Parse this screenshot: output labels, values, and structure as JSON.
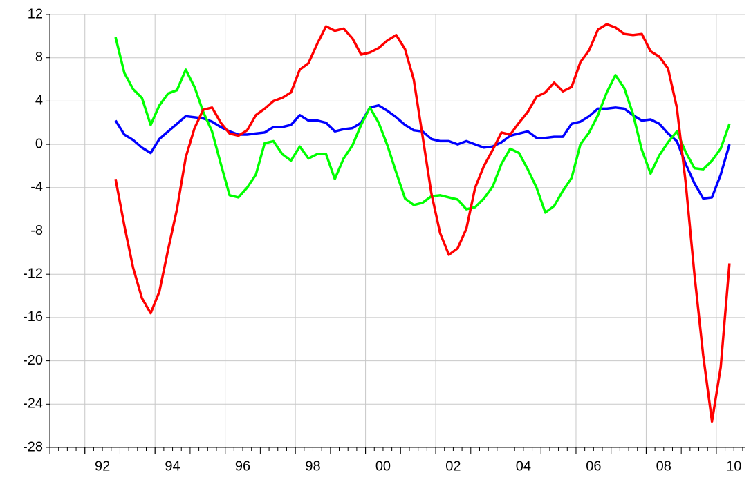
{
  "chart_data": {
    "type": "line",
    "x": [
      1992.875,
      1993.125,
      1993.375,
      1993.625,
      1993.875,
      1994.125,
      1994.375,
      1994.625,
      1994.875,
      1995.125,
      1995.375,
      1995.625,
      1995.875,
      1996.125,
      1996.375,
      1996.625,
      1996.875,
      1997.125,
      1997.375,
      1997.625,
      1997.875,
      1998.125,
      1998.375,
      1998.625,
      1998.875,
      1999.125,
      1999.375,
      1999.625,
      1999.875,
      2000.125,
      2000.375,
      2000.625,
      2000.875,
      2001.125,
      2001.375,
      2001.625,
      2001.875,
      2002.125,
      2002.375,
      2002.625,
      2002.875,
      2003.125,
      2003.375,
      2003.625,
      2003.875,
      2004.125,
      2004.375,
      2004.625,
      2004.875,
      2005.125,
      2005.375,
      2005.625,
      2005.875,
      2006.125,
      2006.375,
      2006.625,
      2006.875,
      2007.125,
      2007.375,
      2007.625,
      2007.875,
      2008.125,
      2008.375,
      2008.625,
      2008.875,
      2009.125,
      2009.375,
      2009.625,
      2009.875,
      2010.125,
      2010.375
    ],
    "series": [
      {
        "color": "#0000ff",
        "values": [
          2.2,
          0.9,
          0.4,
          -0.3,
          -0.8,
          0.5,
          1.2,
          1.9,
          2.6,
          2.5,
          2.4,
          2.1,
          1.6,
          1.2,
          0.9,
          0.9,
          1.0,
          1.1,
          1.6,
          1.6,
          1.8,
          2.7,
          2.2,
          2.2,
          2.0,
          1.2,
          1.4,
          1.5,
          2.0,
          3.4,
          3.6,
          3.1,
          2.5,
          1.8,
          1.3,
          1.2,
          0.5,
          0.3,
          0.3,
          0.0,
          0.3,
          0.0,
          -0.3,
          -0.2,
          0.2,
          0.8,
          1.0,
          1.2,
          0.6,
          0.6,
          0.7,
          0.7,
          1.9,
          2.1,
          2.6,
          3.3,
          3.3,
          3.4,
          3.3,
          2.7,
          2.2,
          2.3,
          1.9,
          1.0,
          0.3,
          -1.8,
          -3.6,
          -5.0,
          -4.9,
          -2.8,
          0.0
        ]
      },
      {
        "color": "#00ff00",
        "values": [
          9.9,
          6.6,
          5.1,
          4.3,
          1.8,
          3.6,
          4.7,
          5.0,
          6.9,
          5.3,
          3.0,
          1.2,
          -1.8,
          -4.7,
          -4.9,
          -4.0,
          -2.8,
          0.1,
          0.3,
          -0.9,
          -1.5,
          -0.2,
          -1.3,
          -0.9,
          -0.9,
          -3.2,
          -1.3,
          -0.1,
          1.8,
          3.4,
          2.0,
          -0.1,
          -2.6,
          -5.0,
          -5.6,
          -5.4,
          -4.8,
          -4.7,
          -4.9,
          -5.1,
          -6.0,
          -5.8,
          -5.0,
          -3.9,
          -1.8,
          -0.4,
          -0.8,
          -2.3,
          -4.0,
          -6.3,
          -5.7,
          -4.3,
          -3.1,
          0.0,
          1.1,
          2.7,
          4.8,
          6.4,
          5.2,
          2.8,
          -0.5,
          -2.7,
          -1.0,
          0.2,
          1.2,
          -0.7,
          -2.2,
          -2.3,
          -1.5,
          -0.4,
          1.9
        ]
      },
      {
        "color": "#ff0000",
        "values": [
          -3.2,
          -7.5,
          -11.4,
          -14.2,
          -15.6,
          -13.6,
          -9.7,
          -6.0,
          -1.2,
          1.5,
          3.2,
          3.4,
          2.0,
          1.0,
          0.8,
          1.3,
          2.7,
          3.3,
          4.0,
          4.3,
          4.8,
          6.9,
          7.5,
          9.3,
          10.9,
          10.5,
          10.7,
          9.8,
          8.3,
          8.5,
          8.9,
          9.6,
          10.1,
          8.8,
          6.0,
          0.8,
          -4.5,
          -8.2,
          -10.2,
          -9.6,
          -7.8,
          -4.0,
          -2.0,
          -0.5,
          1.1,
          0.9,
          2.0,
          3.0,
          4.4,
          4.8,
          5.7,
          4.9,
          5.3,
          7.6,
          8.7,
          10.6,
          11.1,
          10.8,
          10.2,
          10.1,
          10.2,
          8.6,
          8.1,
          7.0,
          3.4,
          -3.5,
          -12.0,
          -19.5,
          -25.6,
          -20.6,
          -11.0
        ]
      }
    ],
    "xlim": [
      1991,
      2010.83
    ],
    "xticks": [
      {
        "value": 1992,
        "label": "92"
      },
      {
        "value": 1994,
        "label": "94"
      },
      {
        "value": 1996,
        "label": "96"
      },
      {
        "value": 1998,
        "label": "98"
      },
      {
        "value": 2000,
        "label": "00"
      },
      {
        "value": 2002,
        "label": "02"
      },
      {
        "value": 2004,
        "label": "04"
      },
      {
        "value": 2006,
        "label": "06"
      },
      {
        "value": 2008,
        "label": "08"
      },
      {
        "value": 2010,
        "label": "10"
      }
    ],
    "ylim": [
      -28,
      12
    ],
    "yticks": [
      -28,
      -24,
      -20,
      -16,
      -12,
      -8,
      -4,
      0,
      4,
      8,
      12
    ],
    "grid": true
  }
}
